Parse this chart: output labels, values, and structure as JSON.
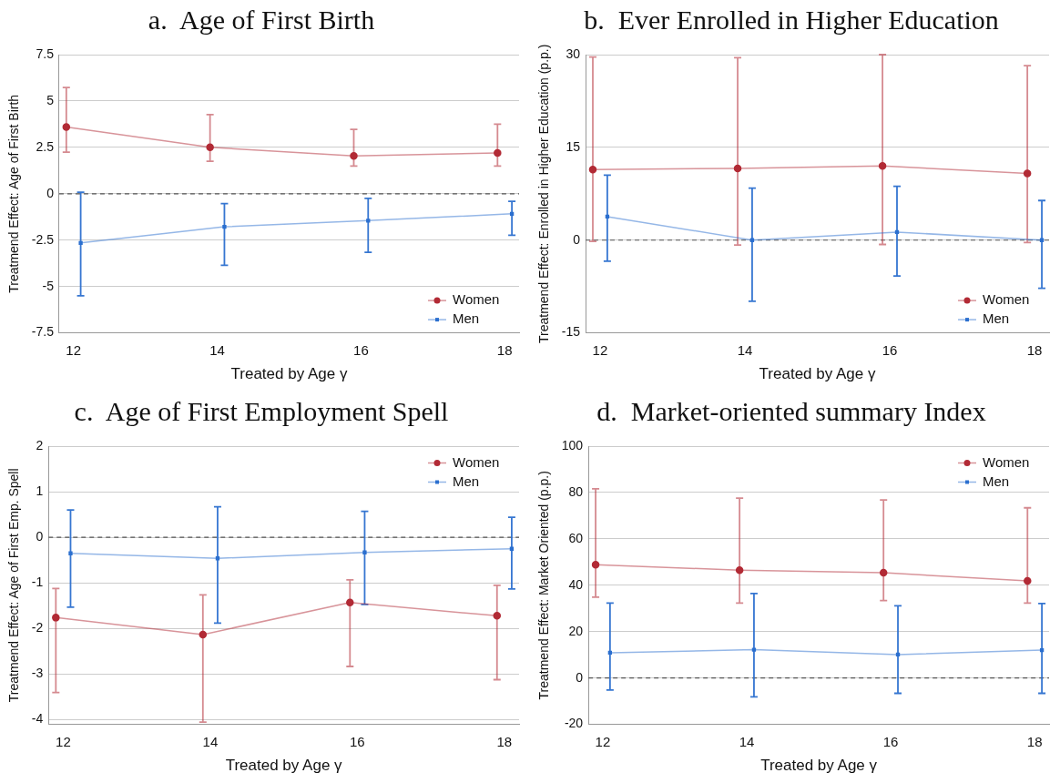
{
  "chart_data": [
    {
      "type": "line",
      "title": "a.  Age of First Birth",
      "xlabel": "Treated by Age γ",
      "ylabel": "Treatmend Effect: Age of First Birth",
      "xlim": [
        11.8,
        18.2
      ],
      "xticks": [
        12,
        14,
        16,
        18
      ],
      "ylim": [
        -7.5,
        7.5
      ],
      "yticks": [
        -7.5,
        -5,
        -2.5,
        0,
        2.5,
        5,
        7.5
      ],
      "grid": "y",
      "legend": "bottom right",
      "ref_lines": [
        {
          "axis": "y",
          "value": 0,
          "color": "#555555",
          "line_style": "dashed"
        }
      ],
      "series": [
        {
          "name": "Women",
          "color": "#b22a35",
          "marker": "circle",
          "x": [
            11.9,
            13.9,
            15.9,
            17.9
          ],
          "values": [
            3.6,
            2.5,
            2.04,
            2.2
          ],
          "errors": [
            [
              2.24,
              5.73
            ],
            [
              1.75,
              4.27
            ],
            [
              1.49,
              3.47
            ],
            [
              1.49,
              3.75
            ]
          ]
        },
        {
          "name": "Men",
          "color": "#2b6fcf",
          "marker": "square",
          "x": [
            12.1,
            14.1,
            16.1,
            18.1
          ],
          "values": [
            -2.65,
            -1.78,
            -1.45,
            -1.08
          ],
          "errors": [
            [
              -5.5,
              0.08
            ],
            [
              -3.86,
              -0.53
            ],
            [
              -3.16,
              -0.25
            ],
            [
              -2.24,
              -0.41
            ]
          ]
        }
      ]
    },
    {
      "type": "line",
      "title": "b.  Ever Enrolled in Higher Education",
      "xlabel": "Treated by Age γ",
      "ylabel": "Treatmend Effect: Enrolled in Higher Education (p.p.)",
      "xlim": [
        11.8,
        18.2
      ],
      "xticks": [
        12,
        14,
        16,
        18
      ],
      "ylim": [
        -15,
        30
      ],
      "yticks": [
        -15,
        0,
        15,
        30
      ],
      "grid": "y",
      "legend": "bottom right",
      "ref_lines": [
        {
          "axis": "y",
          "value": 0,
          "color": "#555555",
          "line_style": "dashed"
        }
      ],
      "series": [
        {
          "name": "Women",
          "color": "#b22a35",
          "marker": "circle",
          "x": [
            11.9,
            13.9,
            15.9,
            17.9
          ],
          "values": [
            11.4,
            11.6,
            12.0,
            10.8
          ],
          "errors": [
            [
              -0.2,
              29.6
            ],
            [
              -0.8,
              29.5
            ],
            [
              -0.7,
              30.0
            ],
            [
              -0.4,
              28.2
            ]
          ]
        },
        {
          "name": "Men",
          "color": "#2b6fcf",
          "marker": "square",
          "x": [
            12.1,
            14.1,
            16.1,
            18.1
          ],
          "values": [
            3.8,
            0,
            1.3,
            0
          ],
          "errors": [
            [
              -3.4,
              10.5
            ],
            [
              -9.9,
              8.4
            ],
            [
              -5.8,
              8.7
            ],
            [
              -7.8,
              6.4
            ]
          ]
        }
      ]
    },
    {
      "type": "line",
      "title": "c.  Age of First Employment Spell",
      "xlabel": "Treated by Age γ",
      "ylabel": "Treatmend Effect: Age of First Emp. Spell",
      "xlim": [
        11.8,
        18.2
      ],
      "xticks": [
        12,
        14,
        16,
        18
      ],
      "ylim": [
        -4.1,
        2
      ],
      "yticks": [
        -4,
        -3,
        -2,
        -1,
        0,
        1,
        2
      ],
      "grid": "y",
      "legend": "top right",
      "ref_lines": [
        {
          "axis": "y",
          "value": 0,
          "color": "#555555",
          "line_style": "dashed"
        }
      ],
      "series": [
        {
          "name": "Women",
          "color": "#b22a35",
          "marker": "circle",
          "x": [
            11.9,
            13.9,
            15.9,
            17.9
          ],
          "values": [
            -1.76,
            -2.13,
            -1.43,
            -1.72
          ],
          "errors": [
            [
              -3.4,
              -1.12
            ],
            [
              -4.05,
              -1.26
            ],
            [
              -2.83,
              -0.93
            ],
            [
              -3.12,
              -1.05
            ]
          ]
        },
        {
          "name": "Men",
          "color": "#2b6fcf",
          "marker": "square",
          "x": [
            12.1,
            14.1,
            16.1,
            18.1
          ],
          "values": [
            -0.35,
            -0.46,
            -0.33,
            -0.25
          ],
          "errors": [
            [
              -1.53,
              0.6
            ],
            [
              -1.88,
              0.67
            ],
            [
              -1.47,
              0.57
            ],
            [
              -1.13,
              0.44
            ]
          ]
        }
      ]
    },
    {
      "type": "line",
      "title": "d.  Market-oriented summary Index",
      "xlabel": "Treated by Age γ",
      "ylabel": "Treatmend Effect: Market Oriented (p.p.)",
      "xlim": [
        11.8,
        18.2
      ],
      "xticks": [
        12,
        14,
        16,
        18
      ],
      "ylim": [
        -20,
        100
      ],
      "yticks": [
        -20,
        0,
        20,
        40,
        60,
        80,
        100
      ],
      "grid": "y",
      "legend": "top right",
      "ref_lines": [
        {
          "axis": "y",
          "value": 0,
          "color": "#555555",
          "line_style": "dashed"
        }
      ],
      "series": [
        {
          "name": "Women",
          "color": "#b22a35",
          "marker": "circle",
          "x": [
            11.9,
            13.9,
            15.9,
            17.9
          ],
          "values": [
            48.9,
            46.5,
            45.4,
            41.9
          ],
          "errors": [
            [
              34.9,
              81.6
            ],
            [
              32.3,
              77.6
            ],
            [
              33.4,
              76.8
            ],
            [
              32.3,
              73.4
            ]
          ]
        },
        {
          "name": "Men",
          "color": "#2b6fcf",
          "marker": "square",
          "x": [
            12.1,
            14.1,
            16.1,
            18.1
          ],
          "values": [
            10.9,
            12.2,
            10.1,
            12.0
          ],
          "errors": [
            [
              -5.2,
              32.3
            ],
            [
              -8.1,
              36.4
            ],
            [
              -6.6,
              31.1
            ],
            [
              -6.6,
              32.1
            ]
          ]
        }
      ]
    }
  ]
}
